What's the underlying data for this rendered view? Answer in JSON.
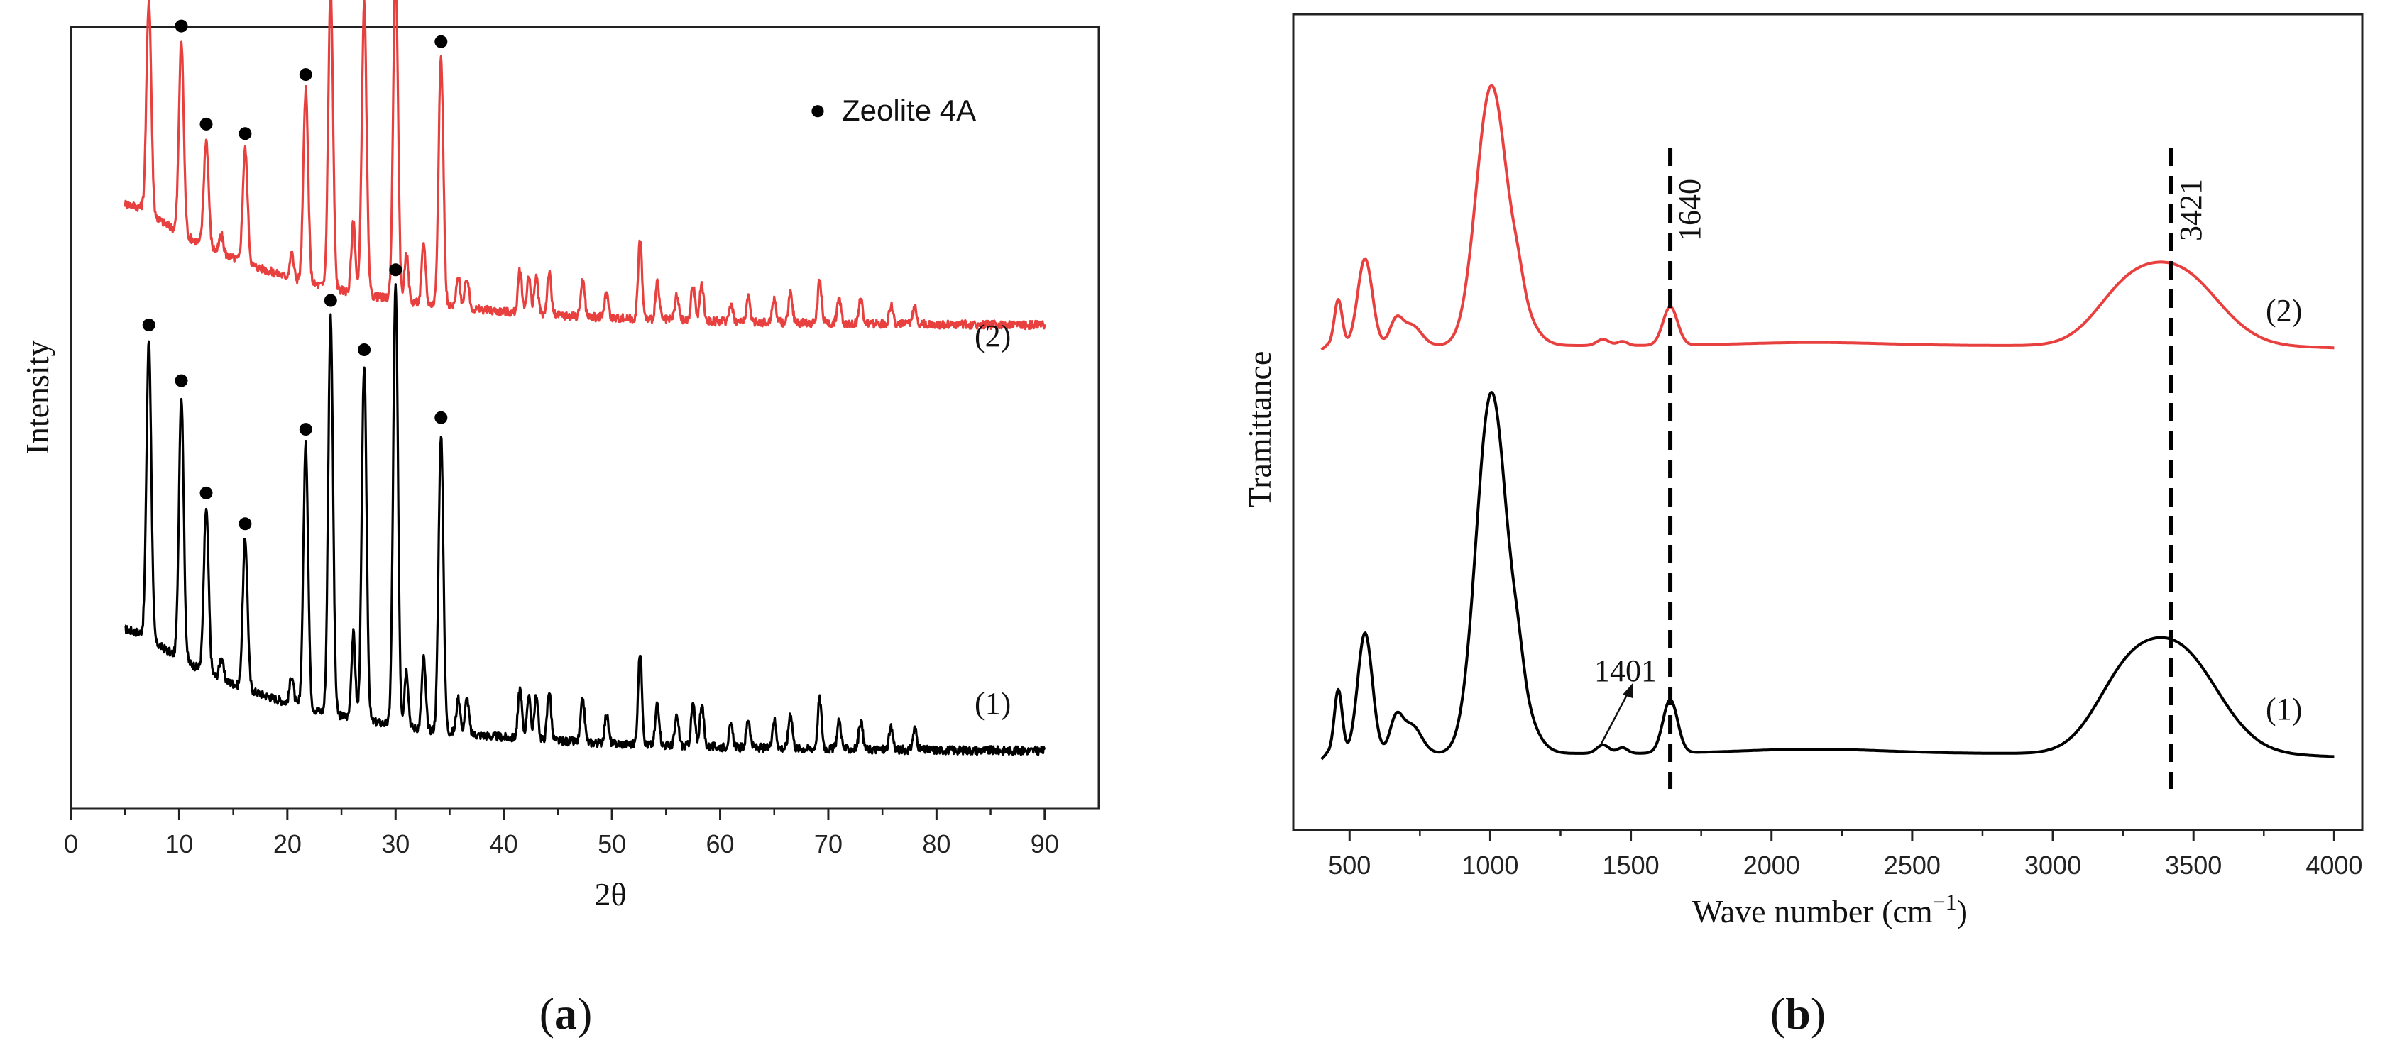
{
  "chart_data": [
    {
      "type": "line",
      "panel": "(a)",
      "panel_letter": "a",
      "xlabel": "2θ",
      "ylabel": "Intensity",
      "xlim": [
        0,
        95
      ],
      "xticks": [
        0,
        10,
        20,
        30,
        40,
        50,
        60,
        70,
        80,
        90
      ],
      "y_ticks_shown": false,
      "legend": {
        "marker": "●",
        "label": "Zeolite  4A",
        "position": "top-right"
      },
      "peak_positions": [
        7.2,
        10.2,
        12.5,
        16.1,
        21.7,
        24.0,
        27.1,
        30.0,
        34.2
      ],
      "series": [
        {
          "name": "(1)",
          "color": "#000000",
          "baseline": 0.0,
          "start_level": 0.16,
          "end_level": 0.0,
          "peak_heights": [
            0.42,
            0.37,
            0.23,
            0.21,
            0.37,
            0.56,
            0.5,
            0.62,
            0.42
          ],
          "label": "(1)"
        },
        {
          "name": "(2)",
          "color": "#e8403f",
          "baseline": 0.6,
          "start_level": 0.16,
          "end_level": 0.0,
          "peak_heights": [
            0.3,
            0.27,
            0.15,
            0.16,
            0.27,
            0.42,
            0.41,
            0.47,
            0.35
          ],
          "label": "(2)"
        }
      ]
    },
    {
      "type": "line",
      "panel": "(b)",
      "panel_letter": "b",
      "xlabel": "Wave number (cm",
      "xlabel_sup": "−1",
      "xlabel_close": ")",
      "ylabel": "Tramittance",
      "xlim": [
        300,
        4100
      ],
      "xticks": [
        500,
        1000,
        1500,
        2000,
        2500,
        3000,
        3500,
        4000
      ],
      "y_ticks_shown": false,
      "reference_lines": [
        {
          "x": 1640,
          "label": "1640"
        },
        {
          "x": 3421,
          "label": "3421"
        }
      ],
      "annotations": [
        {
          "x": 1401,
          "label": "1401"
        }
      ],
      "series": [
        {
          "name": "(1)",
          "color": "#000000",
          "offset": 0.0,
          "scale": 1.0,
          "label": "(1)"
        },
        {
          "name": "(2)",
          "color": "#e8403f",
          "offset": 0.58,
          "scale": 0.72,
          "label": "(2)"
        }
      ]
    }
  ]
}
